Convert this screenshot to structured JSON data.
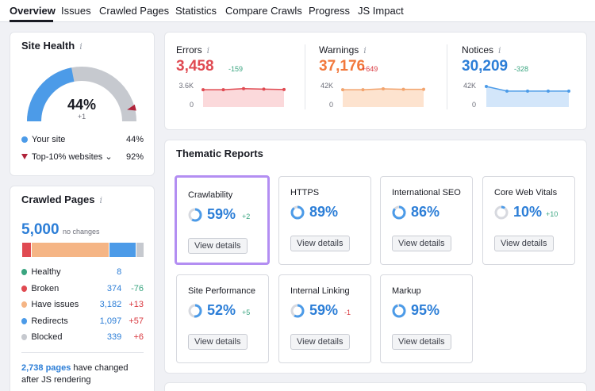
{
  "tabs": [
    {
      "label": "Overview",
      "active": true
    },
    {
      "label": "Issues"
    },
    {
      "label": "Crawled Pages"
    },
    {
      "label": "Statistics"
    },
    {
      "label": "Compare Crawls"
    },
    {
      "label": "Progress"
    },
    {
      "label": "JS Impact"
    }
  ],
  "site_health": {
    "title": "Site Health",
    "info_icon": "i",
    "value": "44%",
    "delta": "+1",
    "progress": 44,
    "top_marker": 92,
    "legend": [
      {
        "label": "Your site",
        "value": "44%",
        "color": "#4c9be8"
      },
      {
        "label": "Top-10% websites",
        "value": "92%",
        "color": "#b0233a",
        "chevron": "⌄"
      }
    ]
  },
  "crawled_pages": {
    "title": "Crawled Pages",
    "info_icon": "i",
    "total": "5,000",
    "total_note": "no changes",
    "bar": [
      {
        "color": "#3aa580",
        "share": 0.002
      },
      {
        "color": "#e04a52",
        "share": 0.075
      },
      {
        "color": "#f5b585",
        "share": 0.636
      },
      {
        "color": "#4c9be8",
        "share": 0.219
      },
      {
        "color": "#c6c9cf",
        "share": 0.068
      }
    ],
    "rows": [
      {
        "label": "Healthy",
        "value": "8",
        "change": "",
        "color": "#3aa580",
        "change_color": "#3aa580"
      },
      {
        "label": "Broken",
        "value": "374",
        "change": "-76",
        "color": "#e04a52",
        "change_color": "#3aa580"
      },
      {
        "label": "Have issues",
        "value": "3,182",
        "change": "+13",
        "color": "#f5b585",
        "change_color": "#d9383f"
      },
      {
        "label": "Redirects",
        "value": "1,097",
        "change": "+57",
        "color": "#4c9be8",
        "change_color": "#d9383f"
      },
      {
        "label": "Blocked",
        "value": "339",
        "change": "+6",
        "color": "#c6c9cf",
        "change_color": "#d9383f"
      }
    ],
    "js_link": "2,738 pages",
    "js_text_1": " have changed",
    "js_text_2": "after JS rendering"
  },
  "metrics": [
    {
      "label": "Errors",
      "value": "3,458",
      "change": "-159",
      "value_color": "#e04a52",
      "change_color": "#3aa580",
      "ymax": "3.6K",
      "ymin": "0",
      "line_color": "#e04a52",
      "fill": "#fbd9db",
      "trend": [
        0.78,
        0.78,
        0.83,
        0.81,
        0.79
      ]
    },
    {
      "label": "Warnings",
      "value": "37,176",
      "change": "+649",
      "value_color": "#f2783c",
      "change_color": "#d9383f",
      "ymax": "42K",
      "ymin": "0",
      "line_color": "#f2a46e",
      "fill": "#fde3cf",
      "trend": [
        0.78,
        0.78,
        0.82,
        0.8,
        0.8
      ]
    },
    {
      "label": "Notices",
      "value": "30,209",
      "change": "-328",
      "value_color": "#2c7ed7",
      "change_color": "#3aa580",
      "ymax": "42K",
      "ymin": "0",
      "line_color": "#4c9be8",
      "fill": "#d3e6fa",
      "trend": [
        0.93,
        0.72,
        0.72,
        0.72,
        0.72
      ]
    }
  ],
  "thematic": {
    "title": "Thematic Reports",
    "button_label": "View details",
    "cards": [
      {
        "name": "Crawlability",
        "pct": "59%",
        "delta": "+2",
        "delta_color": "#3aa580",
        "progress": 59,
        "highlighted": true
      },
      {
        "name": "HTTPS",
        "pct": "89%",
        "delta": "",
        "progress": 89
      },
      {
        "name": "International SEO",
        "pct": "86%",
        "delta": "",
        "progress": 86
      },
      {
        "name": "Core Web Vitals",
        "pct": "10%",
        "delta": "+10",
        "delta_color": "#3aa580",
        "progress": 10
      },
      {
        "name": "Site Performance",
        "pct": "52%",
        "delta": "+5",
        "delta_color": "#3aa580",
        "progress": 52
      },
      {
        "name": "Internal Linking",
        "pct": "59%",
        "delta": "-1",
        "delta_color": "#d9383f",
        "progress": 59
      },
      {
        "name": "Markup",
        "pct": "95%",
        "delta": "",
        "progress": 95
      }
    ]
  }
}
